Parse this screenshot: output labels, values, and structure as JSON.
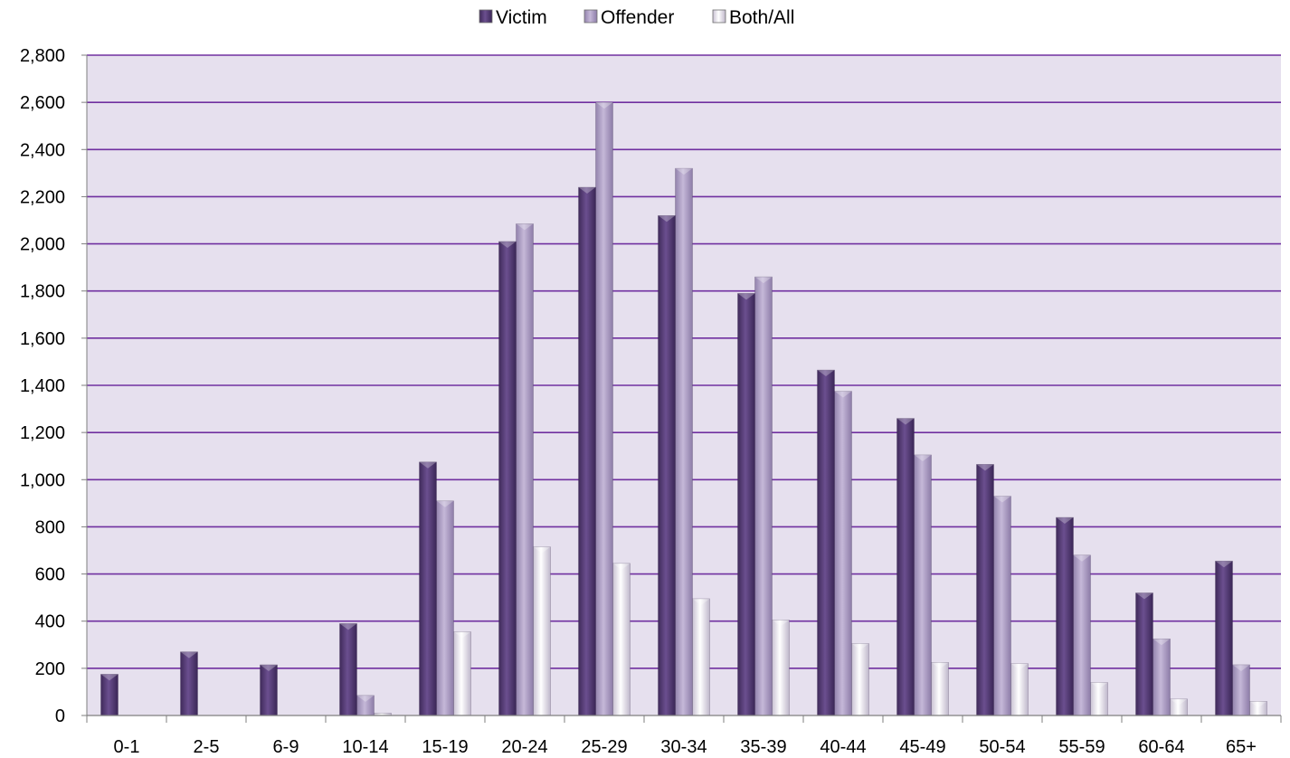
{
  "chart_data": {
    "type": "bar",
    "title": "",
    "xlabel": "",
    "ylabel": "",
    "categories": [
      "0-1",
      "2-5",
      "6-9",
      "10-14",
      "15-19",
      "20-24",
      "25-29",
      "30-34",
      "35-39",
      "40-44",
      "45-49",
      "50-54",
      "55-59",
      "60-64",
      "65+"
    ],
    "series": [
      {
        "name": "Victim",
        "color": "#5b3f7e",
        "values": [
          175,
          270,
          215,
          390,
          1075,
          2010,
          2240,
          2120,
          1790,
          1465,
          1260,
          1065,
          840,
          520,
          655
        ]
      },
      {
        "name": "Offender",
        "color": "#b3a2cb",
        "values": [
          0,
          0,
          0,
          85,
          910,
          2085,
          2600,
          2320,
          1860,
          1375,
          1105,
          930,
          680,
          325,
          215
        ]
      },
      {
        "name": "Both/All",
        "color": "#ece8f1",
        "values": [
          0,
          0,
          0,
          10,
          355,
          715,
          645,
          495,
          405,
          305,
          225,
          220,
          140,
          70,
          60
        ]
      }
    ],
    "ylim": [
      0,
      2800
    ],
    "yticks": [
      0,
      200,
      400,
      600,
      800,
      1000,
      1200,
      1400,
      1600,
      1800,
      2000,
      2200,
      2400,
      2600,
      2800
    ],
    "ytick_labels": [
      "0",
      "200",
      "400",
      "600",
      "800",
      "1,000",
      "1,200",
      "1,400",
      "1,600",
      "1,800",
      "2,000",
      "2,200",
      "2,400",
      "2,600",
      "2,800"
    ],
    "grid": true,
    "plot_background": "#e6e0ee",
    "gridline_color": "#7030a0",
    "legend": {
      "position": "top-center",
      "entries": [
        "Victim",
        "Offender",
        "Both/All"
      ]
    }
  }
}
